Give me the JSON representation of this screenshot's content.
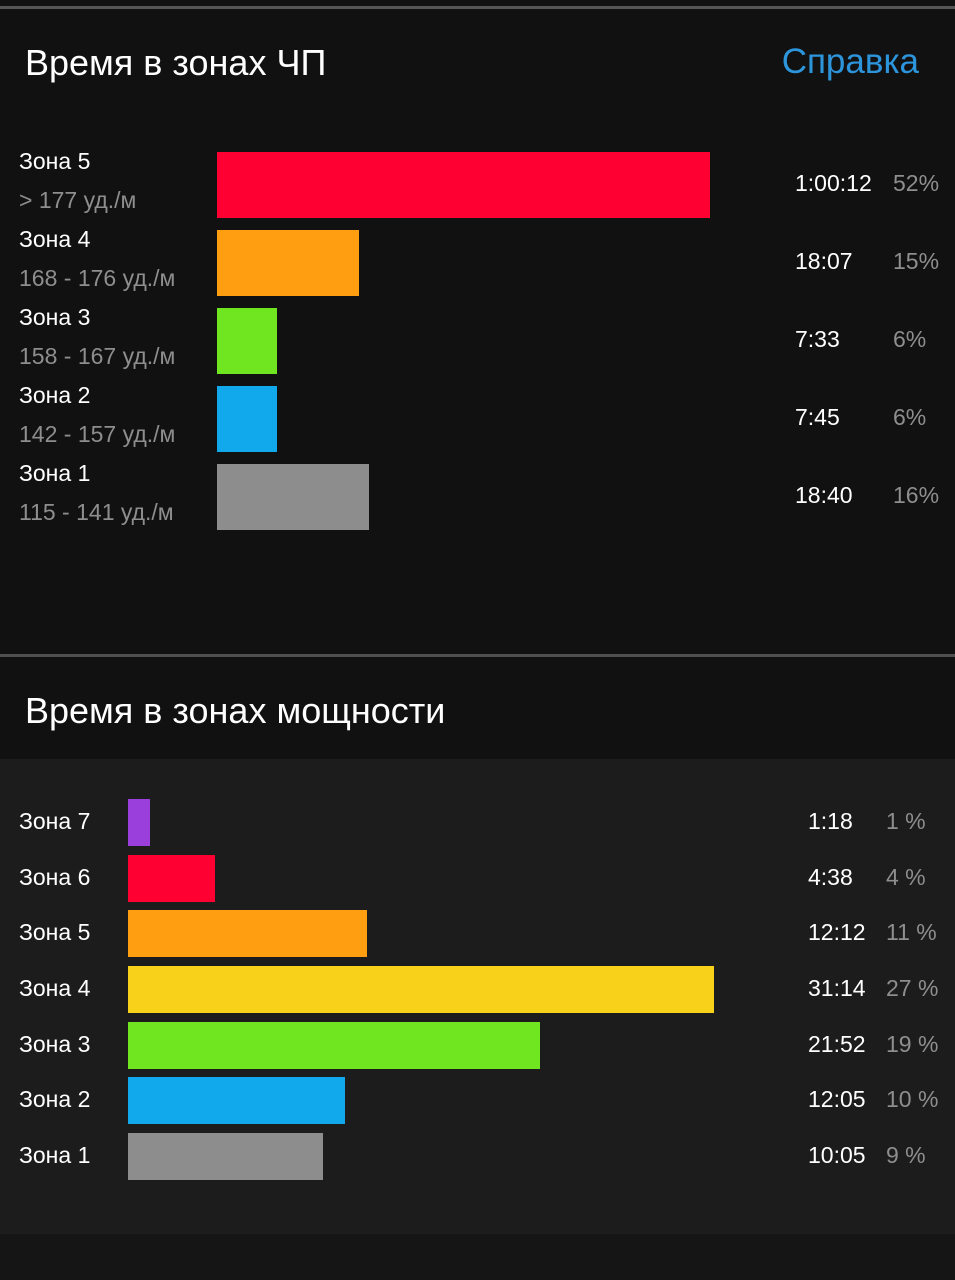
{
  "hr_section": {
    "title": "Время в зонах ЧП",
    "help_label": "Справка",
    "zones": [
      {
        "name": "Зона 5",
        "range": "> 177 уд./м",
        "time": "1:00:12",
        "percent": "52%",
        "fraction": 0.52,
        "color": "#ff0033"
      },
      {
        "name": "Зона 4",
        "range": "168 - 176 уд./м",
        "time": "18:07",
        "percent": "15%",
        "fraction": 0.15,
        "color": "#ff9e10"
      },
      {
        "name": "Зона 3",
        "range": "158 - 167 уд./м",
        "time": "7:33",
        "percent": "6%",
        "fraction": 0.06,
        "color": "#6fe61f"
      },
      {
        "name": "Зона 2",
        "range": "142 - 157 уд./м",
        "time": "7:45",
        "percent": "6%",
        "fraction": 0.06,
        "color": "#11a9ec"
      },
      {
        "name": "Зона 1",
        "range": "115 - 141 уд./м",
        "time": "18:40",
        "percent": "16%",
        "fraction": 0.16,
        "color": "#8d8d8d"
      }
    ]
  },
  "power_section": {
    "title": "Время в зонах мощности",
    "zones": [
      {
        "name": "Зона 7",
        "time": "1:18",
        "percent": "1 %",
        "fraction": 0.01,
        "color": "#9b3fdc"
      },
      {
        "name": "Зона 6",
        "time": "4:38",
        "percent": "4 %",
        "fraction": 0.04,
        "color": "#ff0033"
      },
      {
        "name": "Зона 5",
        "time": "12:12",
        "percent": "11 %",
        "fraction": 0.11,
        "color": "#ff9e10"
      },
      {
        "name": "Зона 4",
        "time": "31:14",
        "percent": "27 %",
        "fraction": 0.27,
        "color": "#f8d21a"
      },
      {
        "name": "Зона 3",
        "time": "21:52",
        "percent": "19 %",
        "fraction": 0.19,
        "color": "#6fe61f"
      },
      {
        "name": "Зона 2",
        "time": "12:05",
        "percent": "10 %",
        "fraction": 0.1,
        "color": "#11a9ec"
      },
      {
        "name": "Зона 1",
        "time": "10:05",
        "percent": "9 %",
        "fraction": 0.09,
        "color": "#8d8d8d"
      }
    ]
  }
}
